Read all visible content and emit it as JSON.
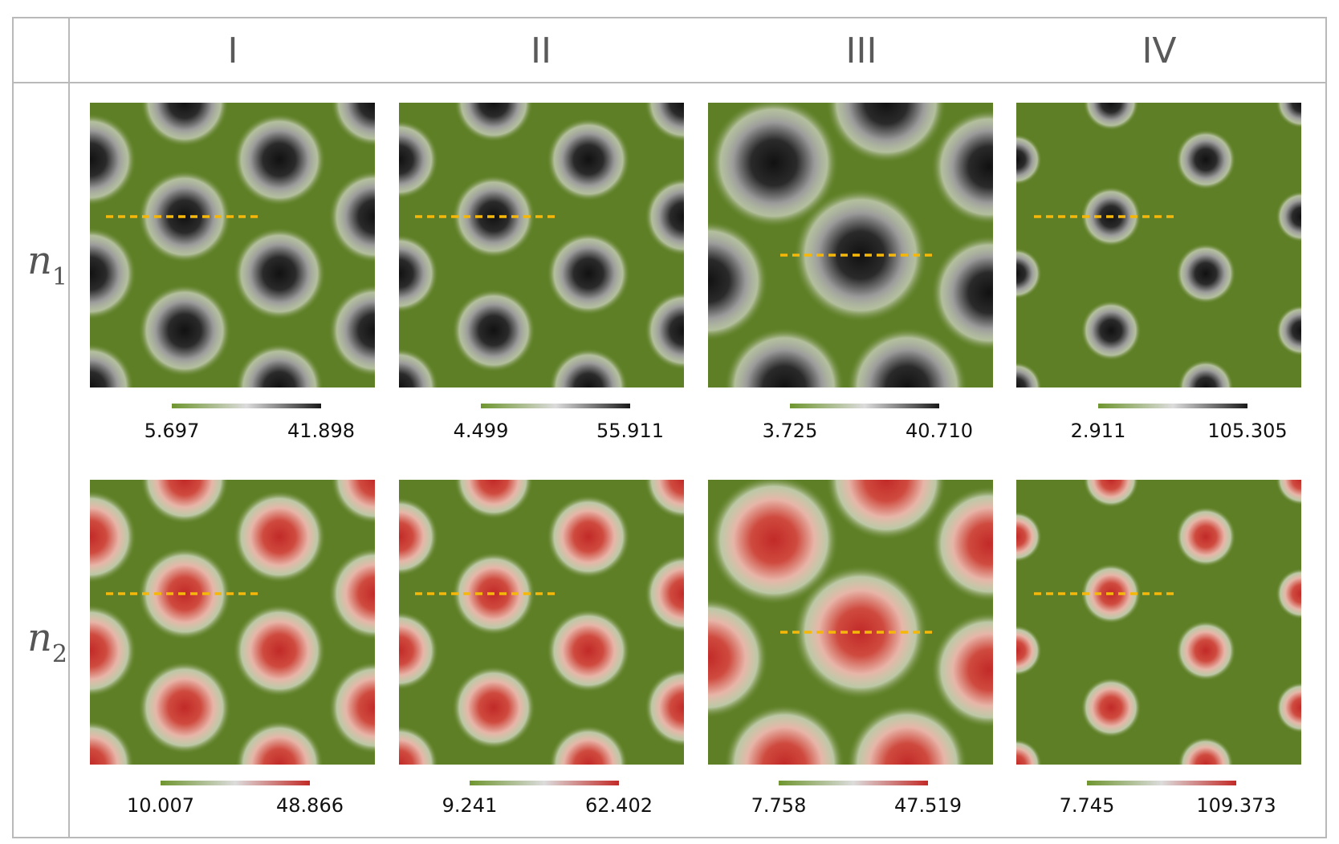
{
  "table": {
    "columns": [
      "I",
      "II",
      "III",
      "IV"
    ],
    "rows": [
      {
        "var": "n",
        "sub": "1"
      },
      {
        "var": "n",
        "sub": "2"
      }
    ]
  },
  "colors": {
    "background": "#5e7f25",
    "n1_peak": "#1a1a1a",
    "n2_peak": "#c0302c",
    "guide_line": "#f5b70a",
    "border": "#b9b9b9"
  },
  "panels": [
    {
      "row": "n1",
      "col": "I",
      "colorbar": {
        "min": "5.697",
        "max": "41.898"
      }
    },
    {
      "row": "n1",
      "col": "II",
      "colorbar": {
        "min": "4.499",
        "max": "55.911"
      }
    },
    {
      "row": "n1",
      "col": "III",
      "colorbar": {
        "min": "3.725",
        "max": "40.710"
      }
    },
    {
      "row": "n1",
      "col": "IV",
      "colorbar": {
        "min": "2.911",
        "max": "105.305"
      }
    },
    {
      "row": "n2",
      "col": "I",
      "colorbar": {
        "min": "10.007",
        "max": "48.866"
      }
    },
    {
      "row": "n2",
      "col": "II",
      "colorbar": {
        "min": "9.241",
        "max": "62.402"
      }
    },
    {
      "row": "n2",
      "col": "III",
      "colorbar": {
        "min": "7.758",
        "max": "47.519"
      }
    },
    {
      "row": "n2",
      "col": "IV",
      "colorbar": {
        "min": "7.745",
        "max": "109.373"
      }
    }
  ]
}
